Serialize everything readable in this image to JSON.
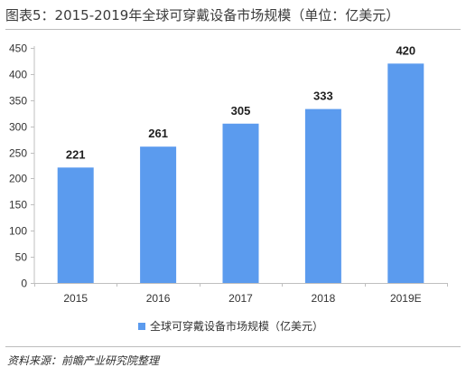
{
  "figure_title": "图表5：2015-2019年全球可穿戴设备市场规模（单位：亿美元）",
  "source_note": "资料来源：前瞻产业研究院整理",
  "colors": {
    "bar": "#5b9bee",
    "axis": "#bfbfbf"
  },
  "chart_data": {
    "type": "bar",
    "categories": [
      "2015",
      "2016",
      "2017",
      "2018",
      "2019E"
    ],
    "series": [
      {
        "name": "全球可穿戴设备市场规模（亿美元）",
        "values": [
          221,
          261,
          305,
          333,
          420
        ]
      }
    ],
    "data_labels": [
      "221",
      "261",
      "305",
      "333",
      "420"
    ],
    "y_ticks": [
      "0",
      "50",
      "100",
      "150",
      "200",
      "250",
      "300",
      "350",
      "400",
      "450"
    ],
    "ylim": [
      0,
      450
    ],
    "grid": false,
    "legend_position": "bottom"
  }
}
